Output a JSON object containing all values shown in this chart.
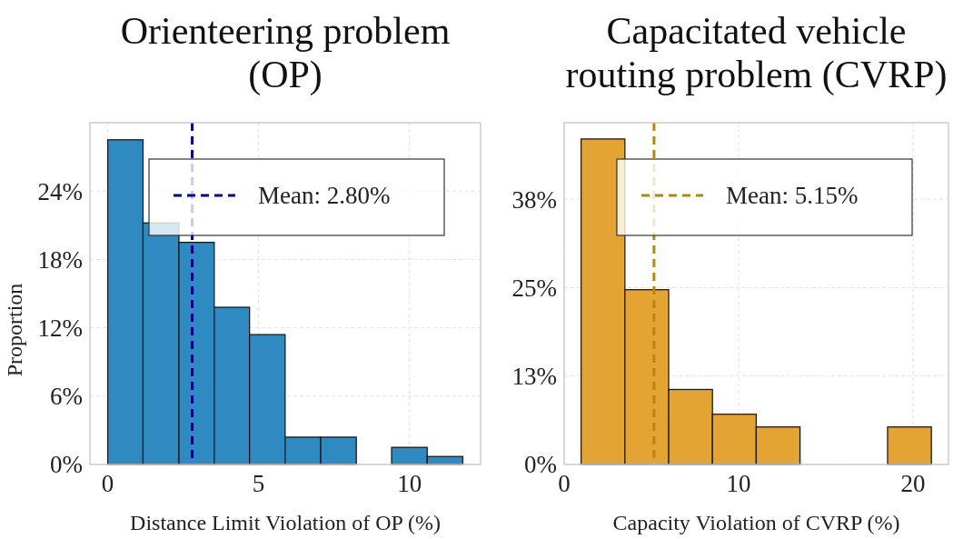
{
  "chart_data": [
    {
      "type": "histogram",
      "title": "Orienteering problem\n(OP)",
      "xlabel": "Distance Limit Violation of OP (%)",
      "ylabel": "Proportion",
      "bins": [
        0,
        1.17,
        2.36,
        3.53,
        4.7,
        5.88,
        7.06,
        8.24,
        9.41,
        10.59,
        11.77
      ],
      "values": [
        28.5,
        21.2,
        19.5,
        13.8,
        11.4,
        2.4,
        2.4,
        0,
        1.5,
        0.7
      ],
      "color": "#2a88bf",
      "xlim": [
        -0.59,
        12.36
      ],
      "xticks": [
        0,
        5,
        10
      ],
      "ylim": [
        0,
        30
      ],
      "yticks": [
        {
          "value": 0,
          "label": "0%"
        },
        {
          "value": 6,
          "label": "6%"
        },
        {
          "value": 12,
          "label": "12%"
        },
        {
          "value": 18,
          "label": "18%"
        },
        {
          "value": 24,
          "label": "24%"
        }
      ],
      "ref_lines": [
        {
          "axis": "x",
          "value": 2.8,
          "label": "Mean: 2.80%",
          "color": "#00008b",
          "line_style": "dashed"
        }
      ],
      "grid": true,
      "legend": "top right"
    },
    {
      "type": "histogram",
      "title": "Capacitated vehicle\nrouting problem (CVRP)",
      "xlabel": "Capacity Violation of CVRP (%)",
      "bins": [
        0.97,
        3.48,
        5.99,
        8.5,
        11.01,
        13.52,
        16.03,
        18.54,
        21.05
      ],
      "values": [
        46.0,
        24.7,
        10.6,
        7.1,
        5.3,
        0,
        0,
        5.3
      ],
      "color": "#e3a22f",
      "xlim": [
        0,
        22.03
      ],
      "xticks": [
        0,
        10,
        20
      ],
      "ylim": [
        0,
        48.3
      ],
      "yticks": [
        {
          "value": 0,
          "label": "0%"
        },
        {
          "value": 12.5,
          "label": "13%"
        },
        {
          "value": 25,
          "label": "25%"
        },
        {
          "value": 37.5,
          "label": "38%"
        }
      ],
      "ref_lines": [
        {
          "axis": "x",
          "value": 5.15,
          "label": "Mean: 5.15%",
          "color": "#b8860b",
          "line_style": "dashed"
        }
      ],
      "grid": true,
      "legend": "top right"
    }
  ]
}
